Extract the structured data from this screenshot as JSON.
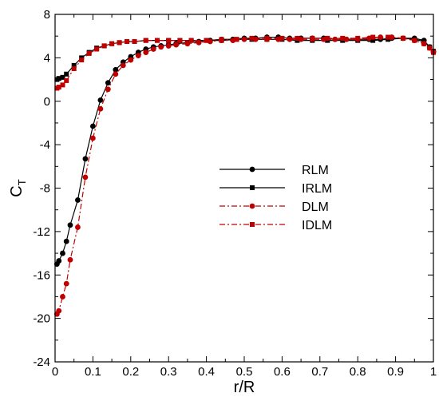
{
  "chart_data": {
    "type": "line",
    "title": "",
    "xlabel": "r/R",
    "ylabel_main": "C",
    "ylabel_sub": "T",
    "xlim": [
      0,
      1
    ],
    "ylim": [
      -24,
      8
    ],
    "x_ticks": [
      "0",
      "0.1",
      "0.2",
      "0.3",
      "0.4",
      "0.5",
      "0.6",
      "0.7",
      "0.8",
      "0.9",
      "1"
    ],
    "y_ticks": [
      "-24",
      "-20",
      "-16",
      "-12",
      "-8",
      "-4",
      "0",
      "4",
      "8"
    ],
    "grid": false,
    "legend_position": "center-right",
    "series": [
      {
        "name": "RLM",
        "color": "#000000",
        "marker": "circle",
        "dash": "solid",
        "x": [
          0.005,
          0.01,
          0.02,
          0.03,
          0.04,
          0.06,
          0.08,
          0.1,
          0.12,
          0.14,
          0.16,
          0.18,
          0.2,
          0.22,
          0.24,
          0.26,
          0.28,
          0.3,
          0.32,
          0.35,
          0.38,
          0.41,
          0.44,
          0.47,
          0.5,
          0.53,
          0.56,
          0.59,
          0.62,
          0.65,
          0.68,
          0.71,
          0.74,
          0.77,
          0.8,
          0.83,
          0.86,
          0.89,
          0.92,
          0.95,
          0.975,
          0.99,
          1.0
        ],
        "y": [
          -15.0,
          -14.7,
          -14.0,
          -12.9,
          -11.4,
          -9.1,
          -5.3,
          -2.3,
          0.1,
          1.7,
          2.9,
          3.6,
          4.1,
          4.5,
          4.8,
          5.0,
          5.1,
          5.2,
          5.3,
          5.4,
          5.5,
          5.6,
          5.7,
          5.7,
          5.8,
          5.8,
          5.9,
          5.9,
          5.8,
          5.8,
          5.8,
          5.8,
          5.7,
          5.7,
          5.7,
          5.7,
          5.7,
          5.8,
          5.8,
          5.8,
          5.6,
          5.0,
          4.6
        ]
      },
      {
        "name": "IRLM",
        "color": "#000000",
        "marker": "square",
        "dash": "solid",
        "x": [
          0.005,
          0.01,
          0.02,
          0.03,
          0.05,
          0.07,
          0.09,
          0.11,
          0.13,
          0.15,
          0.17,
          0.19,
          0.21,
          0.24,
          0.27,
          0.3,
          0.33,
          0.36,
          0.4,
          0.44,
          0.48,
          0.52,
          0.56,
          0.6,
          0.64,
          0.68,
          0.72,
          0.76,
          0.8,
          0.84,
          0.88,
          0.92,
          0.95,
          0.975,
          0.99,
          1.0
        ],
        "y": [
          2.0,
          2.1,
          2.2,
          2.5,
          3.3,
          4.0,
          4.5,
          4.9,
          5.1,
          5.3,
          5.4,
          5.5,
          5.5,
          5.6,
          5.6,
          5.6,
          5.6,
          5.6,
          5.6,
          5.6,
          5.7,
          5.7,
          5.7,
          5.7,
          5.6,
          5.6,
          5.6,
          5.6,
          5.6,
          5.6,
          5.7,
          5.8,
          5.7,
          5.5,
          5.0,
          4.6
        ]
      },
      {
        "name": "DLM",
        "color": "#c00000",
        "marker": "circle",
        "dash": "dashdot",
        "x": [
          0.005,
          0.01,
          0.02,
          0.03,
          0.04,
          0.06,
          0.08,
          0.1,
          0.12,
          0.14,
          0.16,
          0.18,
          0.2,
          0.22,
          0.24,
          0.26,
          0.28,
          0.3,
          0.32,
          0.35,
          0.38,
          0.41,
          0.44,
          0.47,
          0.5,
          0.53,
          0.56,
          0.59,
          0.62,
          0.65,
          0.68,
          0.71,
          0.74,
          0.77,
          0.8,
          0.83,
          0.86,
          0.89,
          0.92,
          0.95,
          0.975,
          0.99,
          1.0
        ],
        "y": [
          -19.6,
          -19.3,
          -18.0,
          -16.8,
          -14.6,
          -11.6,
          -7.0,
          -3.4,
          -0.7,
          1.1,
          2.5,
          3.3,
          3.8,
          4.2,
          4.5,
          4.8,
          5.0,
          5.1,
          5.2,
          5.3,
          5.4,
          5.5,
          5.6,
          5.6,
          5.7,
          5.7,
          5.7,
          5.7,
          5.7,
          5.7,
          5.7,
          5.7,
          5.7,
          5.7,
          5.7,
          5.8,
          5.9,
          5.9,
          5.8,
          5.6,
          5.3,
          4.9,
          4.5
        ]
      },
      {
        "name": "IDLM",
        "color": "#c00000",
        "marker": "square",
        "dash": "dashdot",
        "x": [
          0.005,
          0.01,
          0.02,
          0.03,
          0.05,
          0.07,
          0.09,
          0.11,
          0.13,
          0.15,
          0.17,
          0.19,
          0.21,
          0.24,
          0.27,
          0.3,
          0.33,
          0.36,
          0.4,
          0.44,
          0.48,
          0.52,
          0.56,
          0.6,
          0.64,
          0.68,
          0.72,
          0.76,
          0.8,
          0.84,
          0.88,
          0.92,
          0.95,
          0.975,
          0.99,
          1.0
        ],
        "y": [
          1.2,
          1.3,
          1.5,
          1.9,
          3.0,
          3.8,
          4.4,
          4.8,
          5.1,
          5.3,
          5.4,
          5.5,
          5.5,
          5.6,
          5.6,
          5.6,
          5.6,
          5.6,
          5.6,
          5.7,
          5.7,
          5.8,
          5.8,
          5.8,
          5.8,
          5.8,
          5.8,
          5.8,
          5.8,
          5.9,
          5.9,
          5.8,
          5.6,
          5.3,
          4.9,
          4.5
        ]
      }
    ]
  }
}
